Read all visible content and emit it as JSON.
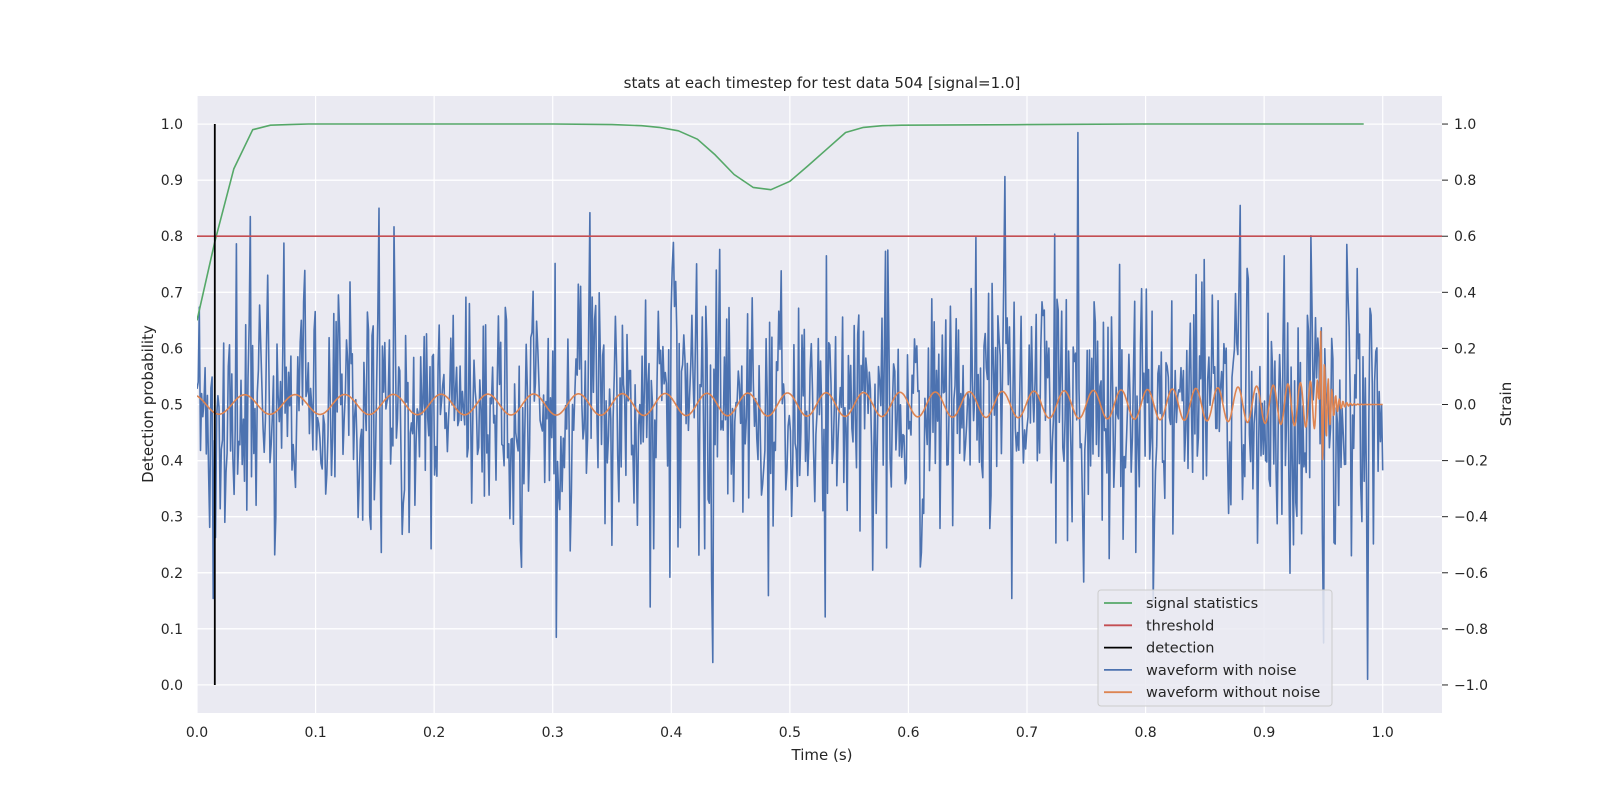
{
  "chart_data": {
    "type": "line",
    "title": "stats at each timestep for test data 504 [signal=1.0]",
    "xlabel": "Time (s)",
    "ylabel_left": "Detection probability",
    "ylabel_right": "Strain",
    "xlim": [
      0.0,
      1.05
    ],
    "ylim_left": [
      -0.05,
      1.05
    ],
    "ylim_right": [
      -1.1,
      1.1
    ],
    "x_ticks": [
      "0.0",
      "0.1",
      "0.2",
      "0.3",
      "0.4",
      "0.5",
      "0.6",
      "0.7",
      "0.8",
      "0.9",
      "1.0"
    ],
    "y_ticks_left": [
      "0.0",
      "0.1",
      "0.2",
      "0.3",
      "0.4",
      "0.5",
      "0.6",
      "0.7",
      "0.8",
      "0.9",
      "1.0"
    ],
    "y_ticks_right": [
      "−1.0",
      "−0.8",
      "−0.6",
      "−0.4",
      "−0.2",
      "0.0",
      "0.2",
      "0.4",
      "0.6",
      "0.8",
      "1.0"
    ],
    "grid": true,
    "legend_position": "lower-right",
    "series": [
      {
        "name": "signal statistics",
        "axis": "left",
        "color": "#55a868",
        "x": [
          0.0,
          0.015,
          0.031,
          0.047,
          0.062,
          0.078,
          0.094,
          0.2,
          0.3,
          0.35,
          0.375,
          0.39,
          0.406,
          0.422,
          0.437,
          0.453,
          0.469,
          0.484,
          0.5,
          0.515,
          0.531,
          0.547,
          0.562,
          0.578,
          0.594,
          0.7,
          0.8,
          0.9,
          0.984
        ],
        "y": [
          0.65,
          0.79,
          0.92,
          0.99,
          0.998,
          0.999,
          1.0,
          1.0,
          1.0,
          0.999,
          0.997,
          0.994,
          0.988,
          0.973,
          0.945,
          0.91,
          0.887,
          0.883,
          0.898,
          0.925,
          0.955,
          0.985,
          0.994,
          0.997,
          0.998,
          0.999,
          1.0,
          1.0,
          1.0
        ]
      },
      {
        "name": "threshold",
        "axis": "left",
        "color": "#c44e52",
        "x": [
          0.0,
          1.05
        ],
        "y": [
          0.8,
          0.8
        ]
      },
      {
        "name": "detection",
        "axis": "left",
        "color": "#000000",
        "x": [
          0.015,
          0.015
        ],
        "y": [
          0.0,
          1.0
        ]
      },
      {
        "name": "waveform with noise",
        "axis": "right",
        "color": "#4c72b0",
        "sample_count": 1024,
        "x_range": [
          0.0,
          1.0
        ],
        "peak_points": [
          {
            "x": 0.045,
            "y": 0.67
          },
          {
            "x": 0.153,
            "y": 0.7
          },
          {
            "x": 0.303,
            "y": -0.83
          },
          {
            "x": 0.435,
            "y": -0.92
          },
          {
            "x": 0.743,
            "y": 0.97
          },
          {
            "x": 0.88,
            "y": 0.71
          },
          {
            "x": 0.95,
            "y": -0.85
          }
        ]
      },
      {
        "name": "waveform without noise",
        "axis": "right",
        "color": "#dd8452",
        "sample_count": 2048,
        "x_range": [
          0.0,
          1.0
        ],
        "merger_time": 0.947,
        "peak_amplitude": 0.37
      }
    ]
  }
}
